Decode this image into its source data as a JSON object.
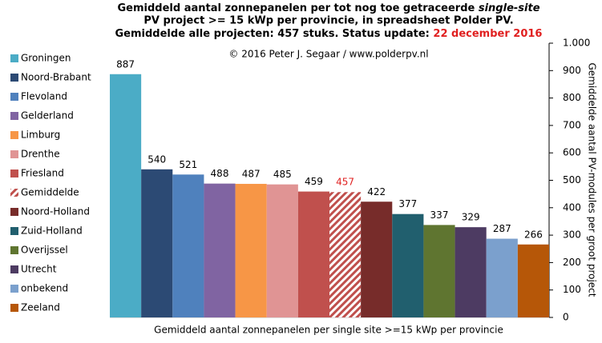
{
  "chart_data": {
    "type": "bar",
    "title": {
      "line1": "Gemiddeld aantal zonnepanelen per tot nog toe getraceerde ",
      "line1_italic": "single-site",
      "line2": "PV project >= 15 kWp per provincie, in spreadsheet Polder PV.",
      "line3": "Gemiddelde alle projecten: 457 stuks. Status update: ",
      "line3_date": "22 december 2016"
    },
    "annotation": "© 2016 Peter J. Segaar / www.polderpv.nl",
    "xlabel": "Gemiddeld aantal zonnepanelen per single site >=15 kWp per provincie",
    "ylabel": "Gemiddelde aantal PV-modules per groot project",
    "categories": [
      "Groningen",
      "Noord-Brabant",
      "Flevoland",
      "Gelderland",
      "Limburg",
      "Drenthe",
      "Friesland",
      "Gemiddelde",
      "Noord-Holland",
      "Zuid-Holland",
      "Overijssel",
      "Utrecht",
      "onbekend",
      "Zeeland"
    ],
    "values": [
      887,
      540,
      521,
      488,
      487,
      485,
      459,
      457,
      422,
      377,
      337,
      329,
      287,
      266
    ],
    "colors": [
      "#4bacc6",
      "#2c4a74",
      "#4f81bd",
      "#8064a2",
      "#f79646",
      "#e09494",
      "#c0504d",
      "#c0504d",
      "#772c2a",
      "#215f6e",
      "#5f7530",
      "#4d3b62",
      "#7ba0cd",
      "#b65708"
    ],
    "bar_styles": [
      "solid",
      "solid",
      "solid",
      "solid",
      "solid",
      "solid",
      "solid",
      "hatch",
      "solid",
      "solid",
      "solid",
      "solid",
      "solid",
      "solid"
    ],
    "value_label_colors": [
      "#000",
      "#000",
      "#000",
      "#000",
      "#000",
      "#000",
      "#000",
      "#e02020",
      "#000",
      "#000",
      "#000",
      "#000",
      "#000",
      "#000"
    ],
    "title_date_color": "#e02020",
    "ylim": [
      0,
      1000
    ],
    "yticks": [
      0,
      100,
      200,
      300,
      400,
      500,
      600,
      700,
      800,
      900,
      {
        "value": 1000,
        "label": "1.000"
      }
    ],
    "yaxis_side": "right",
    "legend": "left",
    "grid": false
  }
}
